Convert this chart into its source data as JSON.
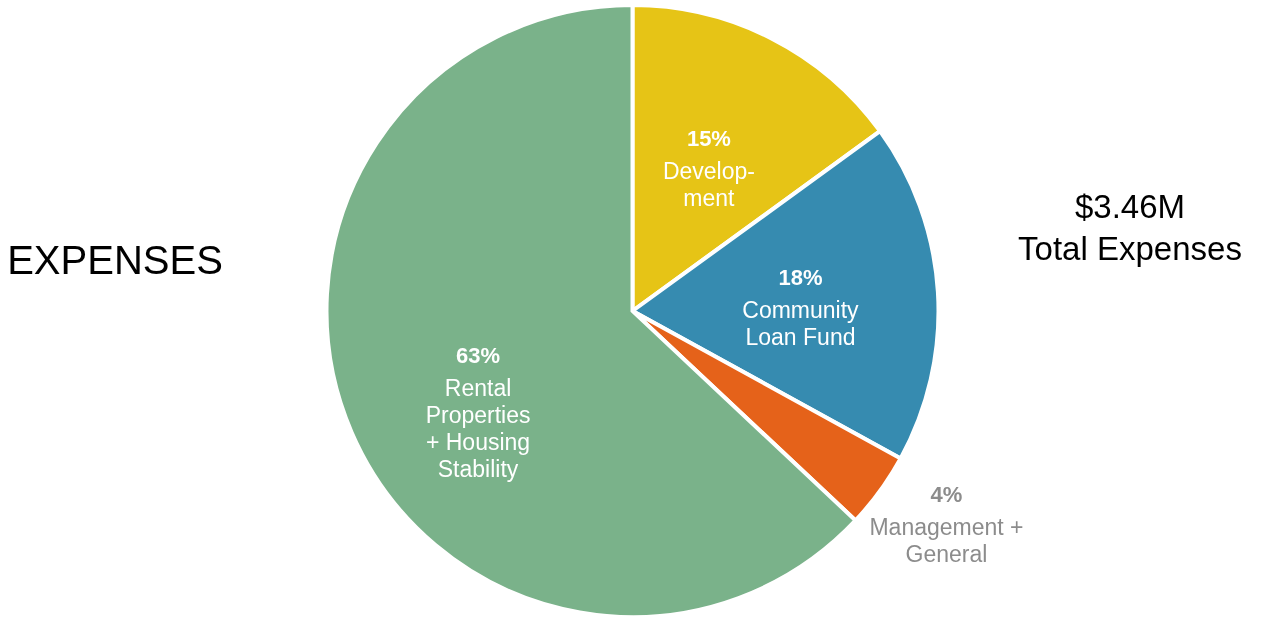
{
  "chart_data": {
    "type": "pie",
    "title": "EXPENSES",
    "categories": [
      "Develop-\nment",
      "Community\nLoan Fund",
      "Management +\nGeneral",
      "Rental\nProperties\n+ Housing\nStability"
    ],
    "values": [
      15,
      18,
      4,
      63
    ],
    "value_labels": [
      "15%",
      "18%",
      "4%",
      "63%"
    ],
    "colors": [
      "#e6c416",
      "#368bb0",
      "#e5621a",
      "#7ab28a"
    ],
    "annotations": [
      "$3.46M\nTotal Expenses"
    ]
  }
}
